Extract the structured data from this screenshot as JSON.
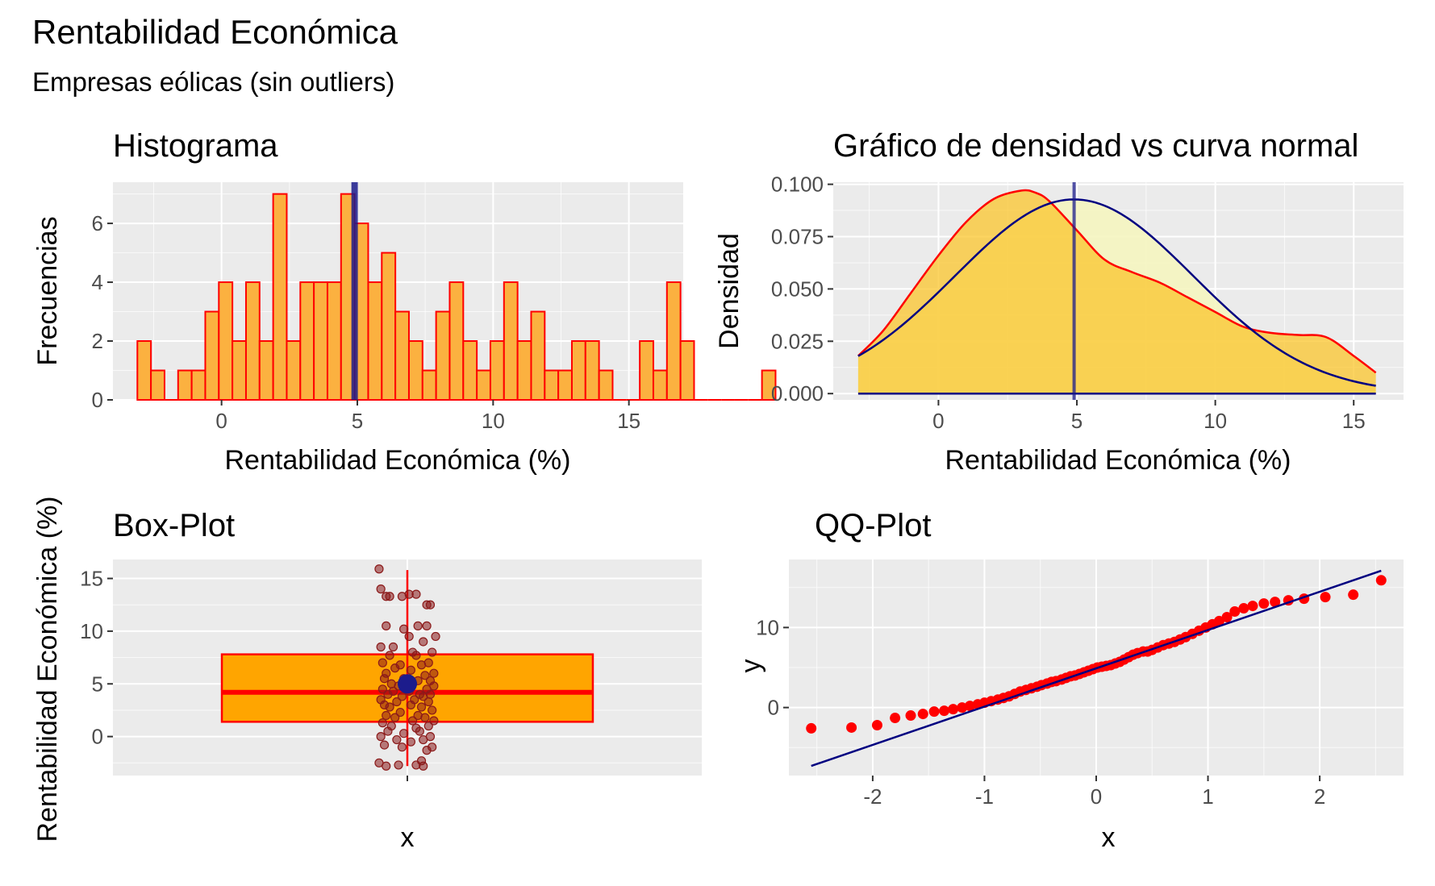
{
  "title": "Rentabilidad Económica",
  "subtitle": "Empresas eólicas (sin outliers)",
  "colors": {
    "fill": "#fbb140",
    "fill_density": "#fbc52c",
    "outline": "#ff0000",
    "mean_line": "#1c1c8c",
    "normal_curve": "#000080",
    "normal_fill": "#f5f5c0",
    "box_fill": "#ffa500",
    "points": "#8b1a1a"
  },
  "chart_data": [
    {
      "type": "bar",
      "title": "Histograma",
      "xlabel": "Rentabilidad Económica (%)",
      "ylabel": "Frecuencias",
      "bin_width": 0.5,
      "bin_start": -3.1,
      "counts": [
        2,
        1,
        0,
        1,
        1,
        3,
        4,
        2,
        4,
        2,
        7,
        2,
        4,
        4,
        4,
        7,
        6,
        4,
        5,
        3,
        2,
        1,
        3,
        4,
        2,
        1,
        2,
        4,
        2,
        3,
        1,
        1,
        2,
        2,
        1,
        0,
        0,
        2,
        1,
        4,
        2,
        0,
        0,
        0,
        0,
        0,
        1
      ],
      "xlim": [
        -4,
        17
      ],
      "ylim": [
        0,
        7.4
      ],
      "xticks": [
        0,
        5,
        10,
        15
      ],
      "xtick_labels": [
        "0",
        "5",
        "10",
        "15"
      ],
      "yticks": [
        0,
        2,
        4,
        6
      ],
      "ytick_labels": [
        "0",
        "2",
        "4",
        "6"
      ],
      "mean": 4.9
    },
    {
      "type": "area",
      "title": "Gráfico de densidad vs curva normal",
      "xlabel": "Rentabilidad Económica (%)",
      "ylabel": "Densidad",
      "density_x": [
        -2.9,
        -2,
        -1,
        0,
        1,
        2,
        3,
        3.5,
        4,
        5,
        6,
        7,
        8,
        9,
        10,
        11,
        12,
        13,
        14,
        15,
        15.8
      ],
      "density_y": [
        0.018,
        0.03,
        0.048,
        0.066,
        0.082,
        0.093,
        0.097,
        0.096,
        0.092,
        0.078,
        0.064,
        0.058,
        0.053,
        0.046,
        0.039,
        0.032,
        0.029,
        0.028,
        0.027,
        0.018,
        0.01
      ],
      "normal_mean": 4.9,
      "normal_sd": 4.3,
      "xlim": [
        -3.8,
        16.8
      ],
      "ylim": [
        -0.003,
        0.101
      ],
      "xticks": [
        0,
        5,
        10,
        15
      ],
      "xtick_labels": [
        "0",
        "5",
        "10",
        "15"
      ],
      "yticks": [
        0,
        0.025,
        0.05,
        0.075,
        0.1
      ],
      "ytick_labels": [
        "0.000",
        "0.025",
        "0.050",
        "0.075",
        "0.100"
      ],
      "mean": 4.9
    },
    {
      "type": "box",
      "title": "Box-Plot",
      "xlabel": "x",
      "ylabel": "Rentabilidad Económica (%)",
      "category": "",
      "q1": 1.4,
      "median": 4.2,
      "q3": 7.8,
      "whisker_low": -2.8,
      "whisker_high": 15.8,
      "mean": 5.0,
      "ylim": [
        -3.7,
        16.8
      ],
      "yticks": [
        0,
        5,
        10,
        15
      ],
      "ytick_labels": [
        "0",
        "5",
        "10",
        "15"
      ],
      "jitter_values": [
        15.9,
        14,
        13.5,
        13.3,
        13.3,
        13.3,
        13.5,
        12.5,
        12.5,
        10.5,
        10.5,
        10.2,
        10.5,
        9.5,
        9.5,
        9,
        8.5,
        8.5,
        8,
        8,
        7.7,
        7.7,
        7,
        7,
        6.8,
        6.8,
        6.5,
        6.3,
        6,
        6,
        5.8,
        5.5,
        5.5,
        5.3,
        5.3,
        5,
        5,
        4.8,
        4.8,
        4.5,
        4.5,
        4.3,
        4.3,
        4,
        4,
        4,
        3.8,
        3.8,
        3.5,
        3.5,
        3.3,
        3.3,
        3,
        3,
        2.8,
        2.8,
        2.5,
        2.3,
        2,
        2,
        1.8,
        1.8,
        1.5,
        1.5,
        1.3,
        1,
        1,
        0.8,
        0.5,
        0.5,
        0.3,
        0,
        0,
        -0.3,
        -0.3,
        -0.5,
        -0.8,
        -1,
        -1,
        -1.3,
        -2.3,
        -2.5,
        -2.7,
        -2.7,
        -2.8,
        -2.8
      ],
      "jitter_offsets": [
        -0.16,
        -0.15,
        0.05,
        -0.12,
        -0.03,
        -0.1,
        0.01,
        0.11,
        0.13,
        0.11,
        -0.12,
        -0.02,
        0.06,
        0.01,
        0.16,
        0.09,
        -0.08,
        -0.15,
        0.14,
        0.03,
        -0.1,
        0.05,
        -0.14,
        0.12,
        -0.04,
        0.08,
        -0.07,
        0.02,
        0.15,
        -0.12,
        0.1,
        -0.02,
        -0.13,
        0.06,
        0.13,
        -0.09,
        0.03,
        -0.05,
        0.15,
        -0.14,
        0.11,
        0.01,
        -0.08,
        0.07,
        -0.11,
        0.13,
        -0.03,
        0.09,
        -0.15,
        0.04,
        -0.06,
        0.12,
        -0.13,
        0.02,
        0.08,
        -0.1,
        0.14,
        -0.04,
        0.06,
        -0.12,
        0.1,
        -0.07,
        0.15,
        0.03,
        -0.14,
        -0.09,
        0.12,
        0.05,
        -0.11,
        0.07,
        -0.02,
        0.13,
        -0.15,
        0.09,
        -0.06,
        0.02,
        -0.13,
        0.14,
        -0.03,
        0.11,
        0.08,
        -0.16,
        0.05,
        -0.05,
        0.09,
        -0.12,
        0.02
      ]
    },
    {
      "type": "scatter",
      "title": "QQ-Plot",
      "xlabel": "x",
      "ylabel": "y",
      "xlim": [
        -2.75,
        2.75
      ],
      "ylim": [
        -8.5,
        18.5
      ],
      "xticks": [
        -2,
        -1,
        0,
        1,
        2
      ],
      "xtick_labels": [
        "-2",
        "-1",
        "0",
        "1",
        "2"
      ],
      "yticks": [
        0,
        10
      ],
      "ytick_labels": [
        "0",
        "10"
      ],
      "line": {
        "x": [
          -2.55,
          2.55
        ],
        "y": [
          -7.3,
          17.1
        ]
      },
      "points_x": [
        -2.55,
        -2.19,
        -1.96,
        -1.8,
        -1.66,
        -1.55,
        -1.45,
        -1.36,
        -1.28,
        -1.2,
        -1.13,
        -1.06,
        -1,
        -0.94,
        -0.88,
        -0.83,
        -0.78,
        -0.73,
        -0.68,
        -0.63,
        -0.58,
        -0.53,
        -0.49,
        -0.44,
        -0.4,
        -0.36,
        -0.31,
        -0.27,
        -0.23,
        -0.19,
        -0.15,
        -0.11,
        -0.07,
        -0.03,
        0.01,
        0.05,
        0.09,
        0.13,
        0.17,
        0.21,
        0.25,
        0.29,
        0.33,
        0.37,
        0.42,
        0.46,
        0.5,
        0.55,
        0.6,
        0.65,
        0.7,
        0.75,
        0.8,
        0.86,
        0.92,
        0.98,
        1.04,
        1.1,
        1.17,
        1.24,
        1.32,
        1.4,
        1.5,
        1.6,
        1.72,
        1.86,
        2.05,
        2.3,
        2.55
      ],
      "points_y": [
        -2.6,
        -2.5,
        -2.2,
        -1.3,
        -1,
        -0.8,
        -0.5,
        -0.4,
        -0.2,
        0,
        0.2,
        0.4,
        0.6,
        0.8,
        1,
        1.2,
        1.4,
        1.7,
        2,
        2.2,
        2.4,
        2.6,
        2.8,
        3,
        3.2,
        3.3,
        3.5,
        3.7,
        3.9,
        4,
        4.2,
        4.4,
        4.6,
        4.8,
        5,
        5.1,
        5.2,
        5.3,
        5.5,
        5.7,
        6,
        6.3,
        6.6,
        6.8,
        7,
        7,
        7.2,
        7.5,
        7.8,
        8,
        8.2,
        8.5,
        8.8,
        9.2,
        9.6,
        10,
        10.4,
        10.8,
        11.3,
        12,
        12.4,
        12.7,
        13,
        13.2,
        13.4,
        13.6,
        13.8,
        14.1,
        15.9
      ]
    }
  ]
}
